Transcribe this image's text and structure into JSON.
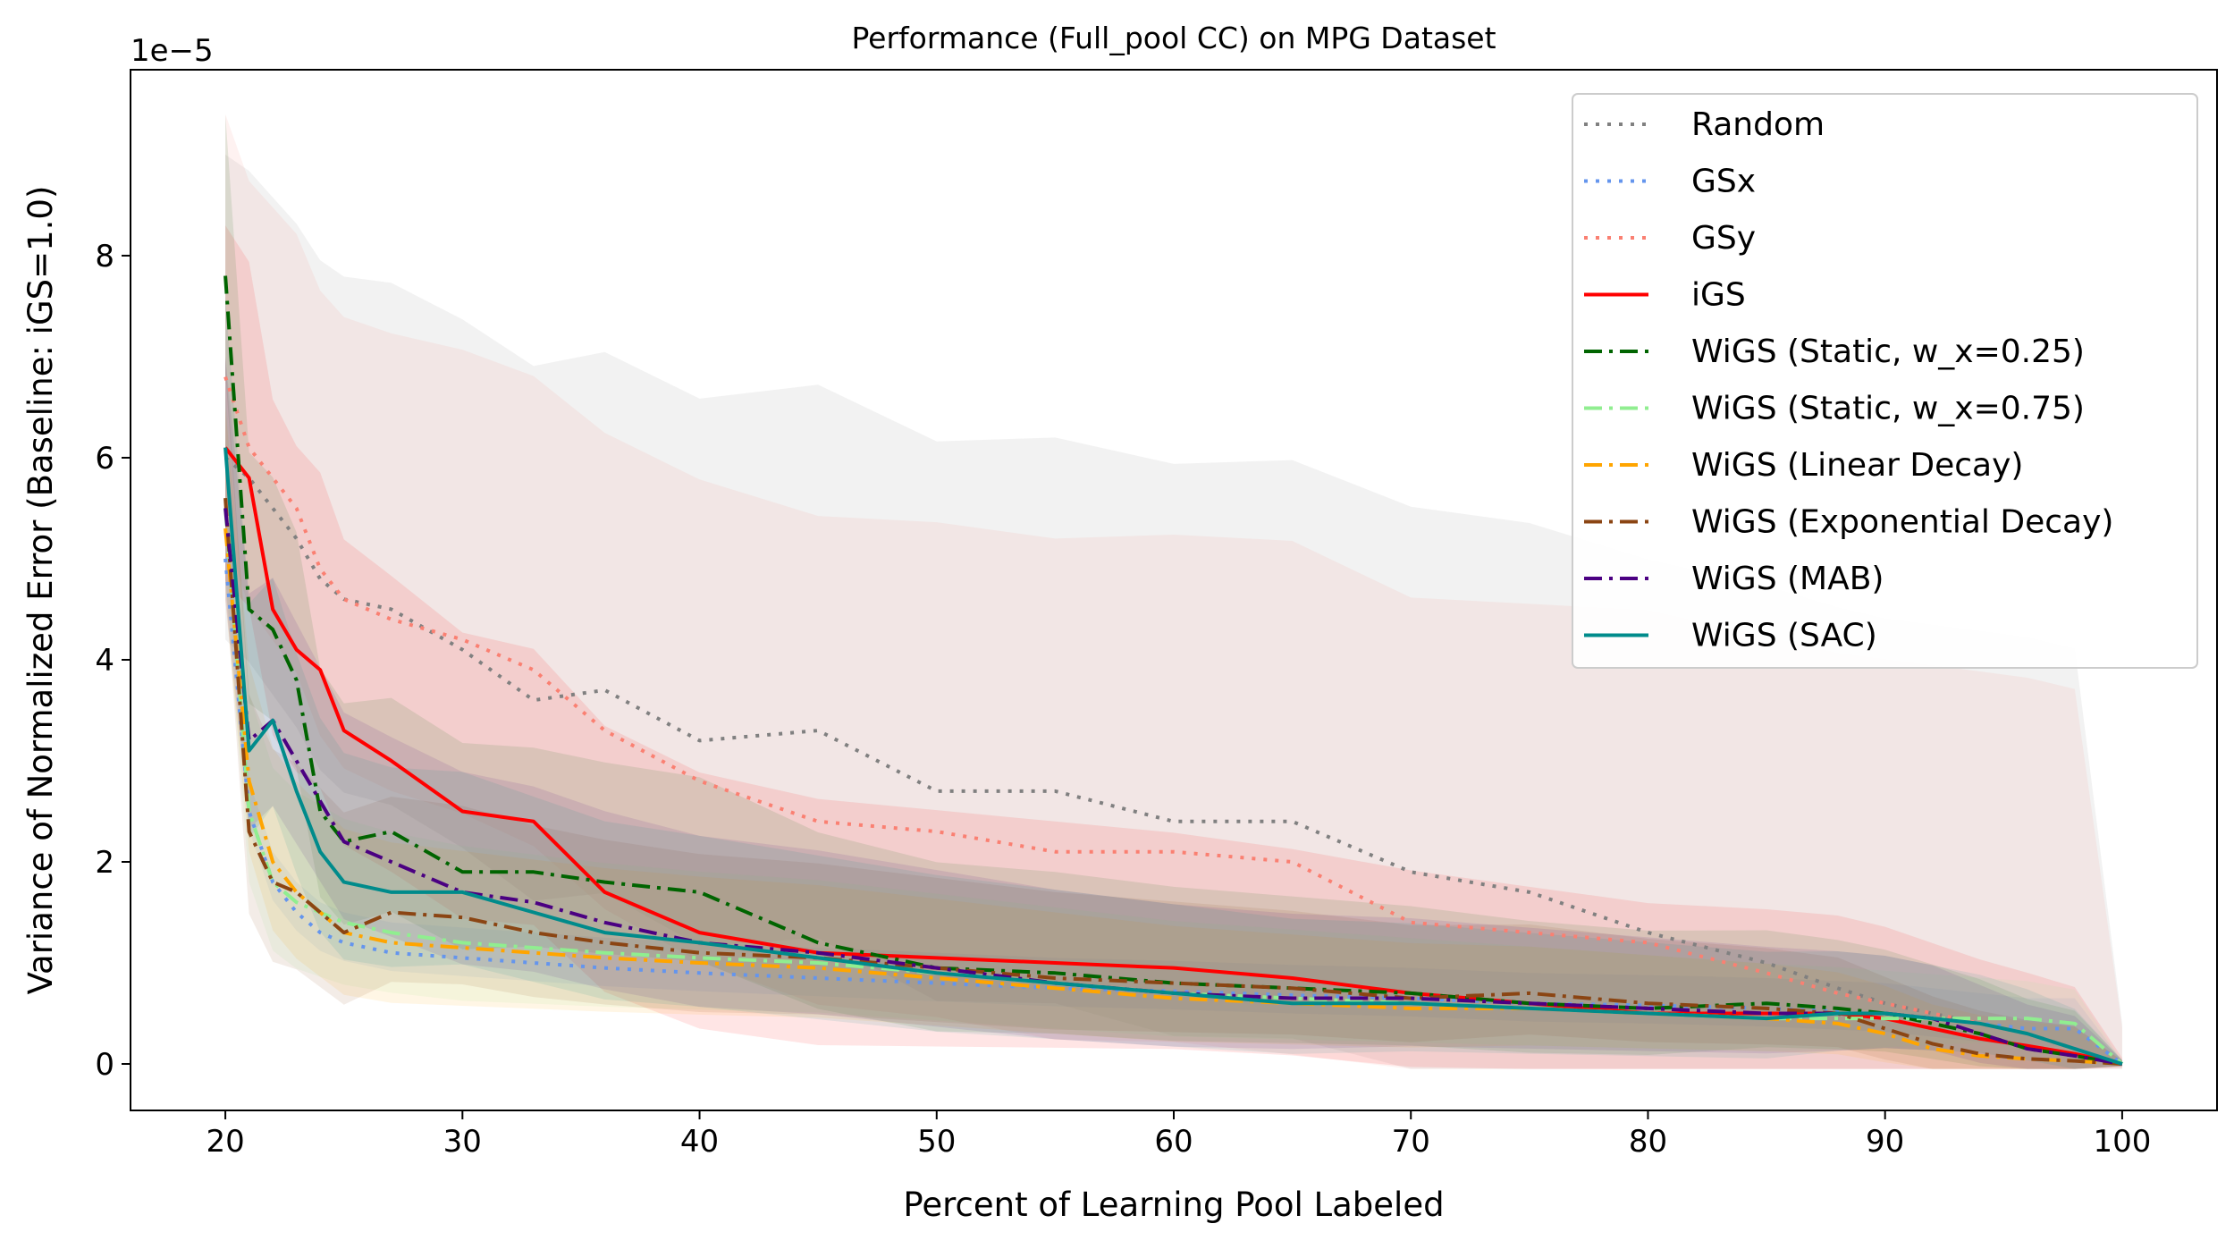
{
  "chart_data": {
    "type": "line",
    "title": "Performance (Full_pool CC) on MPG Dataset",
    "xlabel": "Percent of Learning Pool Labeled",
    "ylabel": "Variance of Normalized Error (Baseline: iGS=1.0)",
    "y_offset_label": "1e−5",
    "xlim": [
      16,
      104
    ],
    "ylim": [
      -0.46,
      9.84
    ],
    "x_ticks": [
      20,
      30,
      40,
      50,
      60,
      70,
      80,
      90,
      100
    ],
    "y_ticks": [
      0,
      2,
      4,
      6,
      8
    ],
    "grid": false,
    "legend_position": "top-right",
    "x": [
      20,
      21,
      22,
      23,
      24,
      25,
      27,
      30,
      33,
      36,
      40,
      45,
      50,
      55,
      60,
      65,
      70,
      75,
      80,
      85,
      88,
      90,
      92,
      94,
      96,
      98,
      100
    ],
    "series": [
      {
        "name": "Random",
        "color": "#808080",
        "style": "dotted",
        "values": [
          6.0,
          5.8,
          5.5,
          5.2,
          4.8,
          4.6,
          4.5,
          4.1,
          3.6,
          3.7,
          3.2,
          3.3,
          2.7,
          2.7,
          2.4,
          2.4,
          1.9,
          1.7,
          1.3,
          1.0,
          0.75,
          0.6,
          0.5,
          0.4,
          0.3,
          0.15,
          0.0
        ],
        "band": [
          3.0,
          4.0
        ]
      },
      {
        "name": "GSx",
        "color": "#6495ED",
        "style": "dotted",
        "values": [
          5.0,
          2.5,
          1.8,
          1.5,
          1.3,
          1.2,
          1.1,
          1.05,
          1.0,
          0.95,
          0.9,
          0.85,
          0.8,
          0.75,
          0.72,
          0.68,
          0.65,
          0.6,
          0.58,
          0.55,
          0.52,
          0.5,
          0.45,
          0.4,
          0.35,
          0.35,
          0.0
        ],
        "band": [
          0.3,
          0.3
        ]
      },
      {
        "name": "GSy",
        "color": "#FA8072",
        "style": "dotted",
        "values": [
          6.8,
          6.1,
          5.8,
          5.5,
          4.9,
          4.6,
          4.4,
          4.2,
          3.9,
          3.3,
          2.8,
          2.4,
          2.3,
          2.1,
          2.1,
          2.0,
          1.4,
          1.3,
          1.2,
          0.9,
          0.7,
          0.6,
          0.5,
          0.4,
          0.3,
          0.15,
          0.0
        ],
        "band": [
          2.6,
          3.6
        ]
      },
      {
        "name": "iGS",
        "color": "#FF0000",
        "style": "solid",
        "values": [
          6.1,
          5.8,
          4.5,
          4.1,
          3.9,
          3.3,
          3.0,
          2.5,
          2.4,
          1.7,
          1.3,
          1.1,
          1.05,
          1.0,
          0.95,
          0.85,
          0.7,
          0.6,
          0.5,
          0.5,
          0.5,
          0.45,
          0.35,
          0.25,
          0.18,
          0.1,
          0.0
        ],
        "band": [
          2.2,
          0.6
        ]
      },
      {
        "name": "WiGS (Static, w_x=0.25)",
        "color": "#006400",
        "style": "dashdot",
        "values": [
          7.8,
          4.5,
          4.3,
          3.8,
          2.5,
          2.2,
          2.3,
          1.9,
          1.9,
          1.8,
          1.7,
          1.2,
          0.95,
          0.9,
          0.8,
          0.75,
          0.7,
          0.6,
          0.55,
          0.6,
          0.55,
          0.5,
          0.4,
          0.3,
          0.15,
          0.08,
          0.0
        ],
        "band": [
          1.6,
          0.4
        ]
      },
      {
        "name": "WiGS (Static, w_x=0.75)",
        "color": "#90EE90",
        "style": "dashdot",
        "values": [
          5.5,
          2.5,
          1.8,
          1.6,
          1.5,
          1.4,
          1.3,
          1.2,
          1.15,
          1.1,
          1.05,
          1.0,
          0.9,
          0.8,
          0.7,
          0.65,
          0.6,
          0.55,
          0.5,
          0.45,
          0.45,
          0.45,
          0.45,
          0.45,
          0.45,
          0.4,
          0.0
        ],
        "band": [
          1.2,
          0.3
        ]
      },
      {
        "name": "WiGS (Linear Decay)",
        "color": "#FFA500",
        "style": "dashdot",
        "values": [
          5.3,
          2.8,
          2.0,
          1.7,
          1.5,
          1.3,
          1.2,
          1.15,
          1.1,
          1.05,
          1.0,
          0.95,
          0.85,
          0.75,
          0.65,
          0.6,
          0.55,
          0.55,
          0.5,
          0.45,
          0.4,
          0.3,
          0.15,
          0.08,
          0.05,
          0.03,
          0.0
        ],
        "band": [
          1.2,
          0.3
        ]
      },
      {
        "name": "WiGS (Exponential Decay)",
        "color": "#8B4513",
        "style": "dashdot",
        "values": [
          5.6,
          2.3,
          1.8,
          1.7,
          1.5,
          1.3,
          1.5,
          1.45,
          1.3,
          1.2,
          1.1,
          1.05,
          0.95,
          0.85,
          0.8,
          0.75,
          0.65,
          0.7,
          0.6,
          0.55,
          0.5,
          0.35,
          0.2,
          0.1,
          0.05,
          0.03,
          0.0
        ],
        "band": [
          1.4,
          0.3
        ]
      },
      {
        "name": "WiGS (MAB)",
        "color": "#4B0082",
        "style": "dashdot",
        "values": [
          5.5,
          3.2,
          3.4,
          3.0,
          2.6,
          2.2,
          2.0,
          1.7,
          1.6,
          1.4,
          1.2,
          1.1,
          0.95,
          0.8,
          0.7,
          0.65,
          0.65,
          0.6,
          0.55,
          0.5,
          0.5,
          0.5,
          0.45,
          0.3,
          0.15,
          0.08,
          0.0
        ],
        "band": [
          1.5,
          0.35
        ]
      },
      {
        "name": "WiGS (SAC)",
        "color": "#008B8B",
        "style": "solid",
        "values": [
          6.1,
          3.1,
          3.4,
          2.7,
          2.1,
          1.8,
          1.7,
          1.7,
          1.5,
          1.3,
          1.2,
          1.05,
          0.9,
          0.8,
          0.7,
          0.6,
          0.6,
          0.55,
          0.5,
          0.45,
          0.5,
          0.5,
          0.45,
          0.4,
          0.3,
          0.15,
          0.0
        ],
        "band": [
          1.5,
          0.35
        ]
      }
    ]
  }
}
